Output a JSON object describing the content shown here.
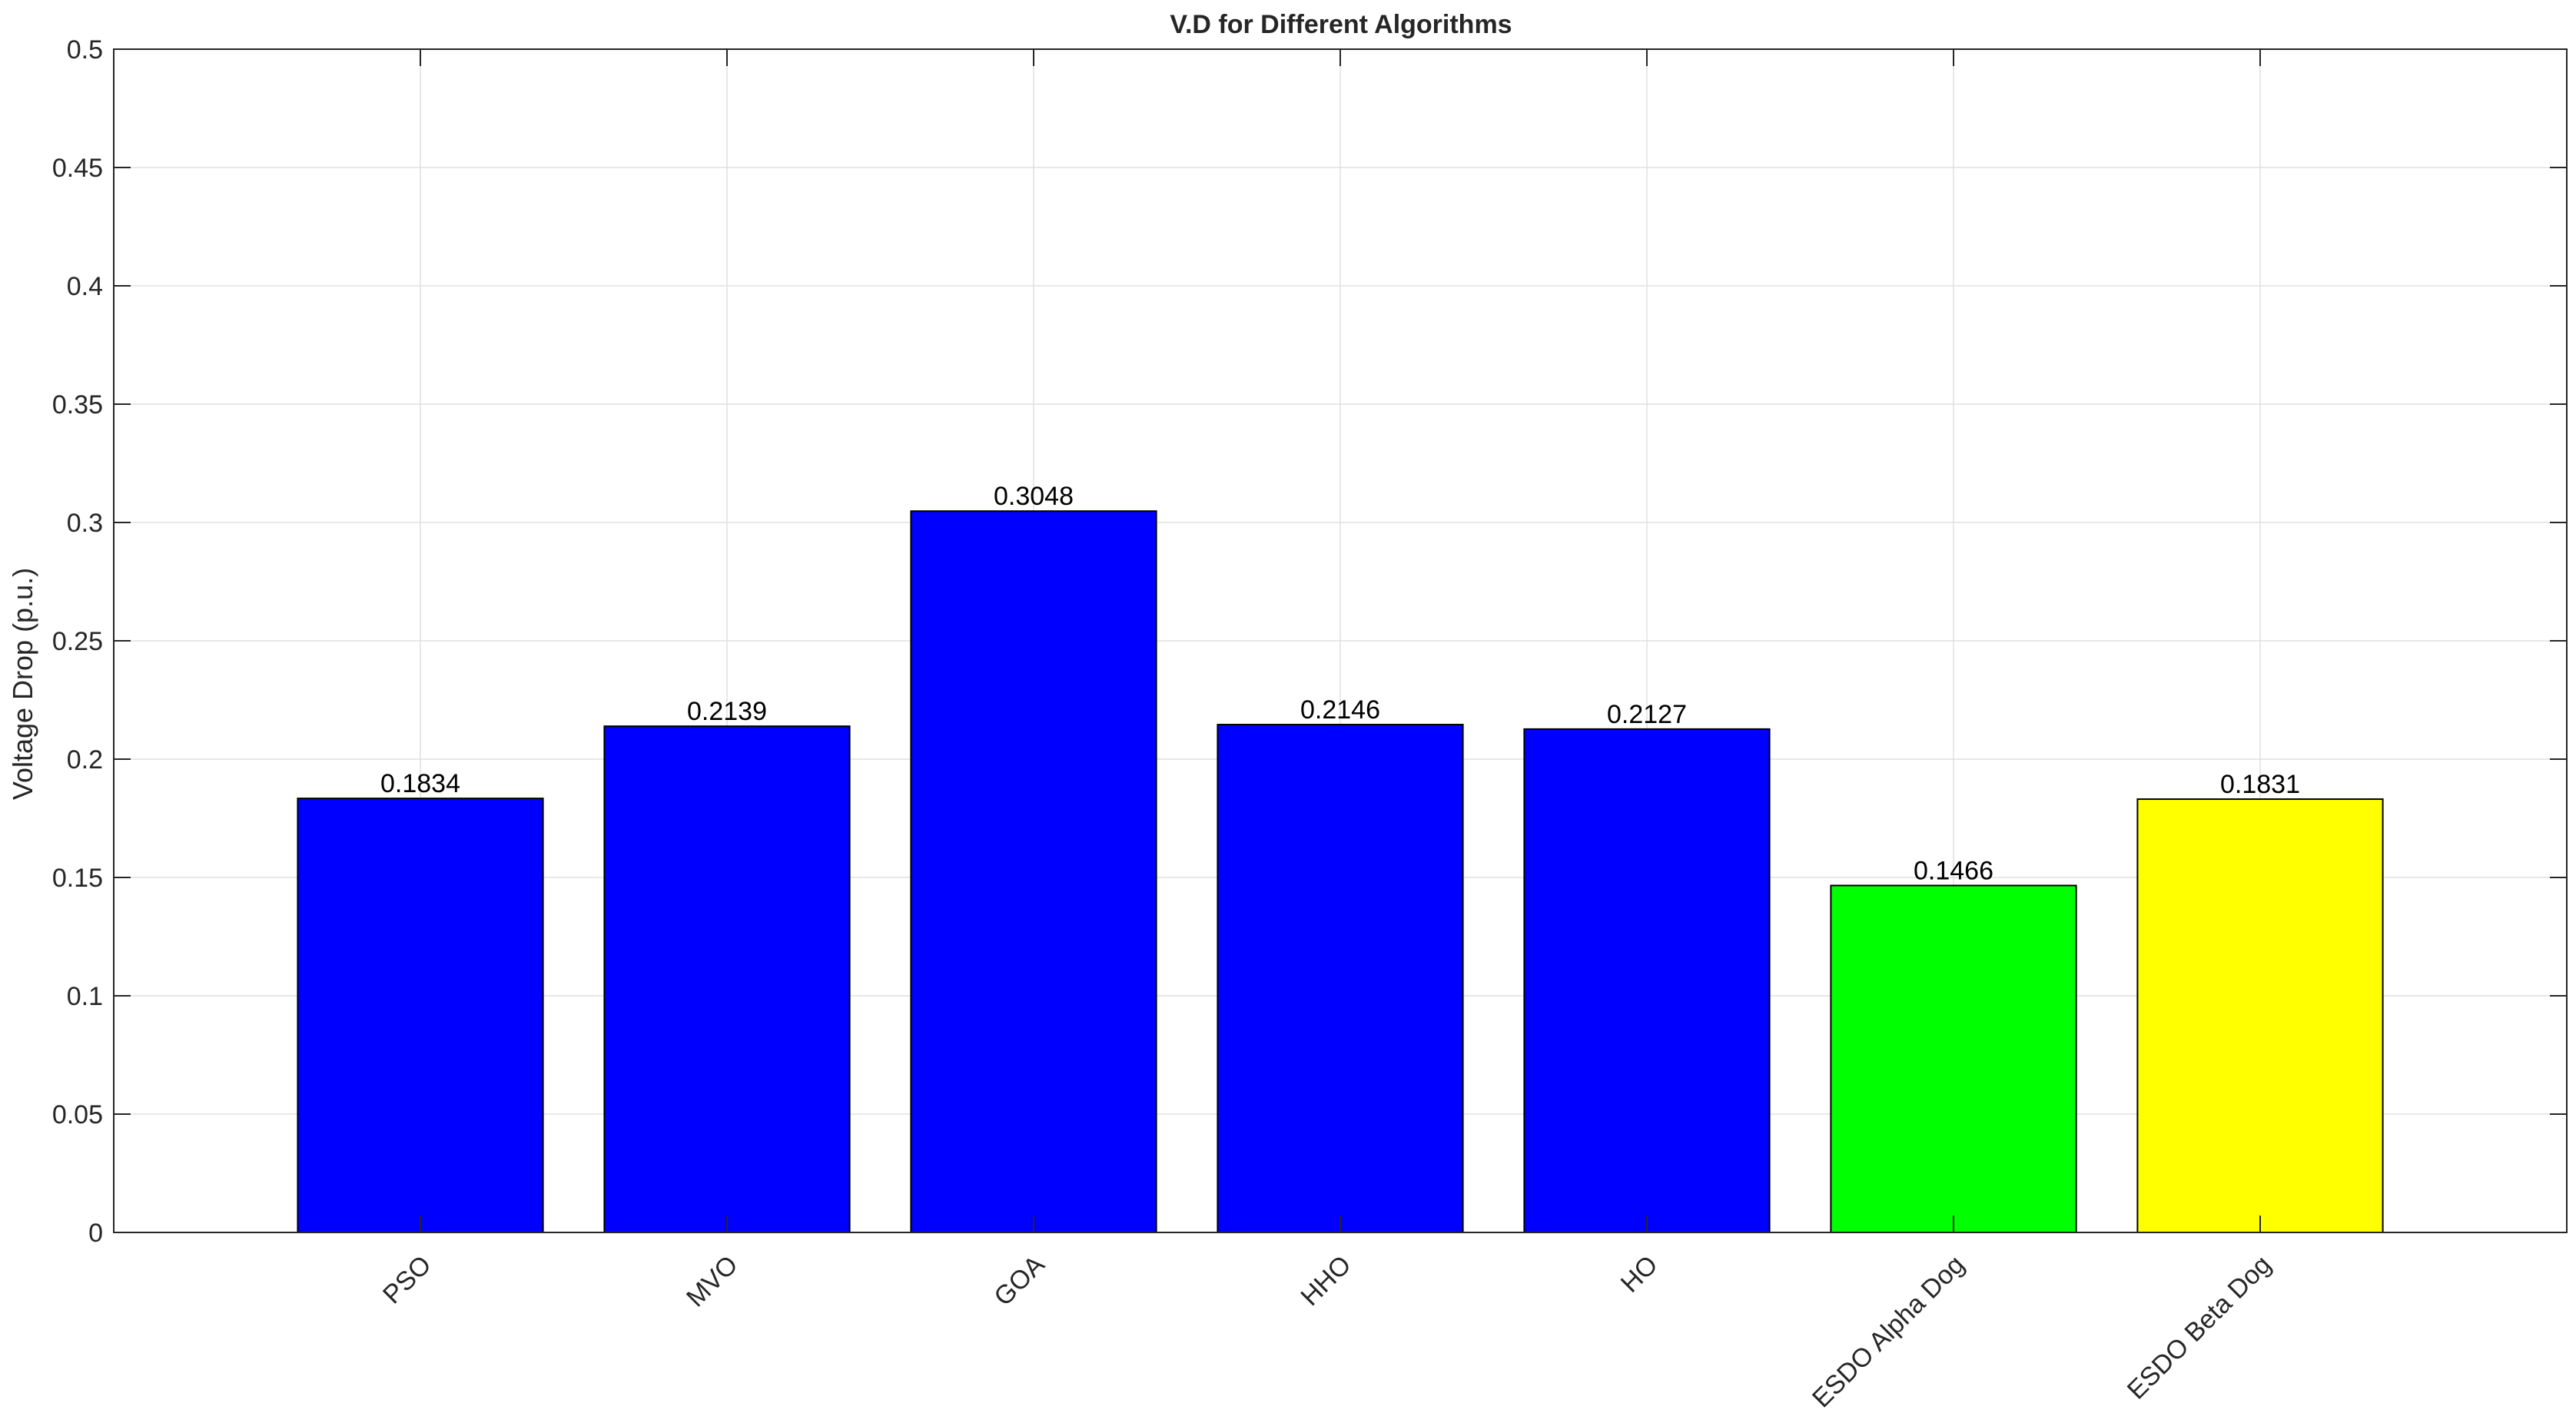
{
  "chart_data": {
    "type": "bar",
    "title": "V.D for Different Algorithms",
    "xlabel": "",
    "ylabel": "Voltage Drop (p.u.)",
    "categories": [
      "PSO",
      "MVO",
      "GOA",
      "HHO",
      "HO",
      "ESDO Alpha Dog",
      "ESDO Beta Dog"
    ],
    "values": [
      0.1834,
      0.2139,
      0.3048,
      0.2146,
      0.2127,
      0.1466,
      0.1831
    ],
    "data_labels": [
      "0.1834",
      "0.2139",
      "0.3048",
      "0.2146",
      "0.2127",
      "0.1466",
      "0.1831"
    ],
    "bar_colors": [
      "#0000ff",
      "#0000ff",
      "#0000ff",
      "#0000ff",
      "#0000ff",
      "#00ff00",
      "#ffff00"
    ],
    "ylim": [
      0,
      0.5
    ],
    "xlim": [
      0,
      8
    ],
    "yticks": [
      0,
      0.05,
      0.1,
      0.15,
      0.2,
      0.25,
      0.3,
      0.35,
      0.4,
      0.45,
      0.5
    ],
    "ytick_labels": [
      "0",
      "0.05",
      "0.1",
      "0.15",
      "0.2",
      "0.25",
      "0.3",
      "0.35",
      "0.4",
      "0.45",
      "0.5"
    ],
    "grid": true,
    "grid_color": "#e0e0e0",
    "axis_color": "#262626",
    "bar_edge_color": "#000000"
  }
}
